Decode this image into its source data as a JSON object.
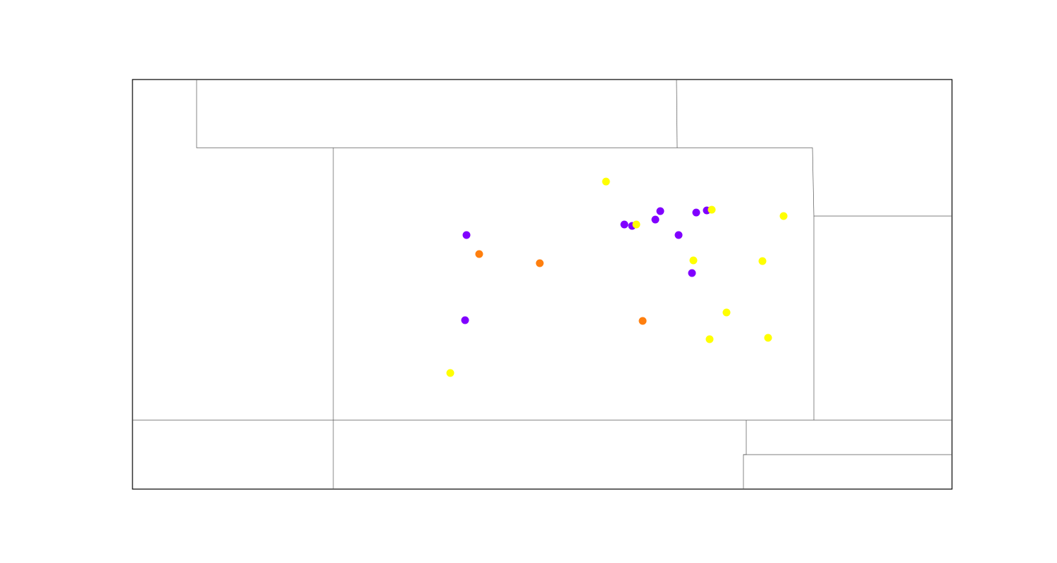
{
  "map": {
    "type": "point-map",
    "title": "",
    "categories": [
      {
        "key": "purple",
        "color": "#8000ff"
      },
      {
        "key": "orange",
        "color": "#ff7f0e"
      },
      {
        "key": "yellow",
        "color": "#ffff00"
      }
    ],
    "points": [
      {
        "category": "purple"
      },
      {
        "category": "orange"
      },
      {
        "category": "orange"
      },
      {
        "category": "purple"
      },
      {
        "category": "yellow"
      },
      {
        "category": "yellow"
      },
      {
        "category": "purple"
      },
      {
        "category": "purple"
      },
      {
        "category": "yellow"
      },
      {
        "category": "purple"
      },
      {
        "category": "purple"
      },
      {
        "category": "purple"
      },
      {
        "category": "purple"
      },
      {
        "category": "purple"
      },
      {
        "category": "yellow"
      },
      {
        "category": "yellow"
      },
      {
        "category": "yellow"
      },
      {
        "category": "purple"
      },
      {
        "category": "yellow"
      },
      {
        "category": "orange"
      },
      {
        "category": "yellow"
      },
      {
        "category": "yellow"
      },
      {
        "category": "yellow"
      }
    ]
  }
}
